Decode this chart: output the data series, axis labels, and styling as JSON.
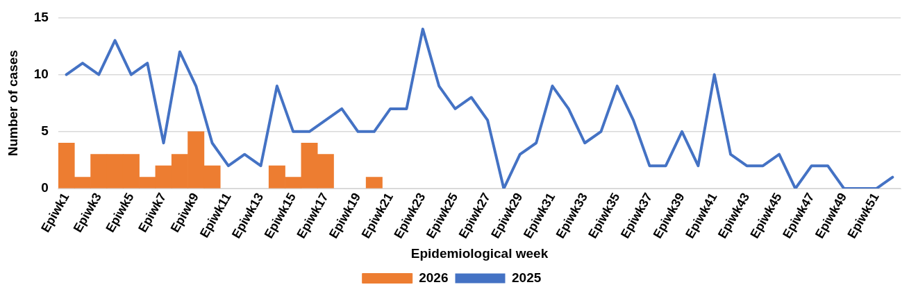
{
  "chart_data": {
    "type": "bar",
    "xlabel": "Epidemiological week",
    "ylabel": "Number of cases",
    "categories": [
      "Epiwk1",
      null,
      "Epiwk3",
      null,
      "Epiwk5",
      null,
      "Epiwk7",
      null,
      "Epiwk9",
      null,
      "Epiwk11",
      null,
      "Epiwk13",
      null,
      "Epiwk15",
      null,
      "Epiwk17",
      null,
      "Epiwk19",
      null,
      "Epiwk21",
      null,
      "Epiwk23",
      null,
      "Epiwk25",
      null,
      "Epiwk27",
      null,
      "Epiwk29",
      null,
      "Epiwk31",
      null,
      "Epiwk33",
      null,
      "Epiwk35",
      null,
      "Epiwk37",
      null,
      "Epiwk39",
      null,
      "Epiwk41",
      null,
      "Epiwk43",
      null,
      "Epiwk45",
      null,
      "Epiwk47",
      null,
      "Epiwk49",
      null,
      "Epiwk51",
      null
    ],
    "series": [
      {
        "name": "2026",
        "color": "#ed7d31",
        "values": [
          4,
          1,
          3,
          3,
          3,
          1,
          2,
          3,
          5,
          2,
          null,
          null,
          null,
          2,
          1,
          4,
          3,
          null,
          null,
          1,
          null,
          null,
          null,
          null,
          null,
          null,
          null,
          null,
          null,
          null,
          null,
          null,
          null,
          null,
          null,
          null,
          null,
          null,
          null,
          null,
          null,
          null,
          null,
          null,
          null,
          null,
          null,
          null,
          null,
          null,
          null,
          null
        ]
      },
      {
        "name": "2025",
        "type": "line",
        "color": "#4472c4",
        "values": [
          10,
          11,
          10,
          13,
          10,
          11,
          4,
          12,
          9,
          4,
          2,
          3,
          2,
          9,
          5,
          5,
          6,
          7,
          5,
          5,
          7,
          7,
          14,
          9,
          7,
          8,
          6,
          0,
          3,
          4,
          9,
          7,
          4,
          5,
          9,
          6,
          2,
          2,
          5,
          2,
          10,
          3,
          2,
          2,
          3,
          0,
          2,
          2,
          0,
          0,
          0,
          1
        ]
      }
    ],
    "ylim": [
      0,
      15
    ],
    "yticks": [
      0,
      5,
      10,
      15
    ],
    "grid": "y",
    "legend": "bottom",
    "marker": "none"
  }
}
